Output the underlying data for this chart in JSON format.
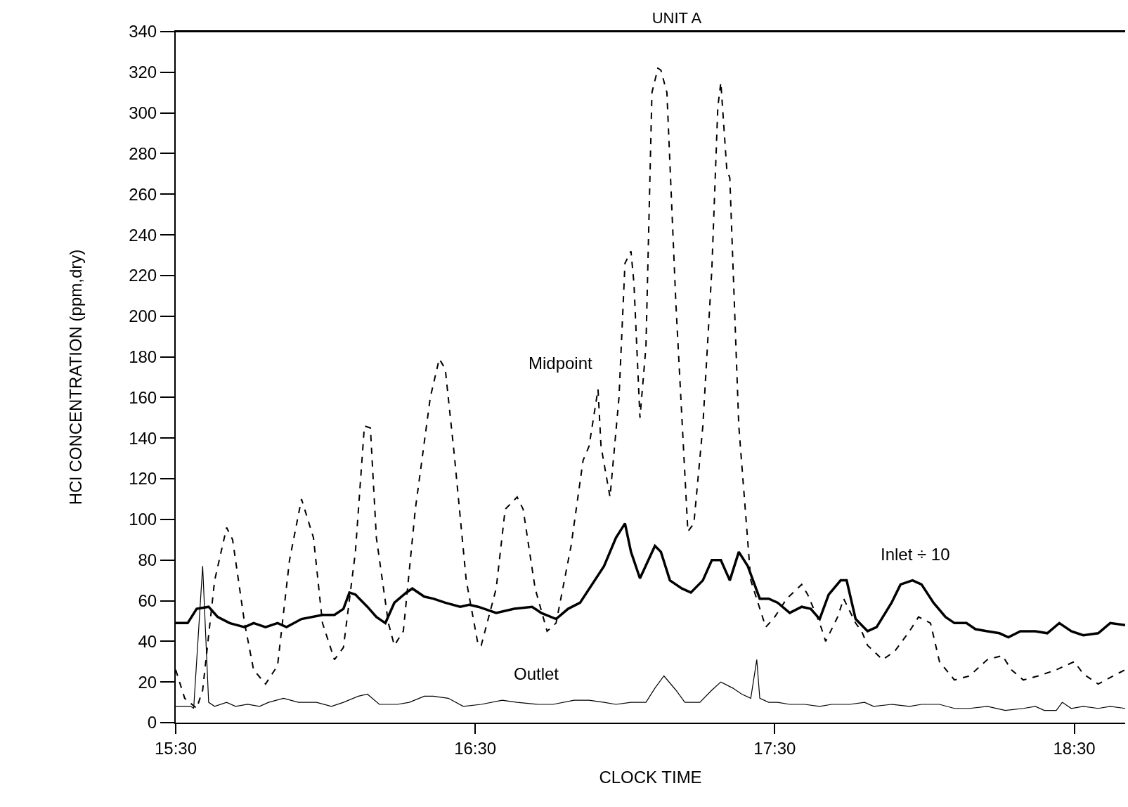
{
  "chart_data": {
    "type": "line",
    "title": "UNIT A",
    "xlabel": "CLOCK TIME",
    "ylabel": "HCl CONCENTRATION (ppm,dry)",
    "xlim": [
      15.5,
      18.67
    ],
    "xticks": [
      {
        "value": 15.5,
        "label": "15:30"
      },
      {
        "value": 16.5,
        "label": "16:30"
      },
      {
        "value": 17.5,
        "label": "17:30"
      },
      {
        "value": 18.5,
        "label": "18:30"
      }
    ],
    "ylim": [
      0,
      340
    ],
    "yticks": [
      0,
      20,
      40,
      60,
      80,
      100,
      120,
      140,
      160,
      180,
      200,
      220,
      240,
      260,
      280,
      300,
      320,
      340
    ],
    "grid": false,
    "marker": "none",
    "annotations": [
      "Midpoint",
      "Inlet ÷ 10",
      "Outlet"
    ],
    "series": [
      {
        "color": "#000000",
        "line_style": "dashed",
        "x": [
          15.5,
          15.53,
          15.57,
          15.59,
          15.63,
          15.67,
          15.69,
          15.73,
          15.76,
          15.8,
          15.84,
          15.88,
          15.92,
          15.96,
          15.99,
          16.03,
          16.06,
          16.1,
          16.13,
          16.15,
          16.17,
          16.21,
          16.23,
          16.26,
          16.3,
          16.35,
          16.38,
          16.4,
          16.43,
          16.47,
          16.51,
          16.52,
          16.57,
          16.6,
          16.64,
          16.66,
          16.7,
          16.74,
          16.77,
          16.82,
          16.86,
          16.88,
          16.91,
          16.92,
          16.95,
          16.98,
          17.0,
          17.02,
          17.03,
          17.05,
          17.07,
          17.09,
          17.11,
          17.12,
          17.14,
          17.17,
          17.21,
          17.23,
          17.26,
          17.29,
          17.31,
          17.32,
          17.34,
          17.35,
          17.38,
          17.42,
          17.47,
          17.5,
          17.54,
          17.59,
          17.61,
          17.65,
          17.67,
          17.71,
          17.73,
          17.77,
          17.79,
          17.81,
          17.86,
          17.9,
          17.95,
          17.98,
          18.02,
          18.05,
          18.1,
          18.15,
          18.21,
          18.26,
          18.29,
          18.33,
          18.38,
          18.44,
          18.5,
          18.53,
          18.58,
          18.63,
          18.67
        ],
        "values": [
          26,
          12,
          7,
          16,
          70,
          96,
          90,
          49,
          26,
          19,
          28,
          80,
          110,
          91,
          49,
          31,
          37,
          84,
          146,
          145,
          91,
          49,
          38,
          45,
          105,
          160,
          179,
          174,
          132,
          70,
          38,
          38,
          66,
          105,
          111,
          105,
          66,
          45,
          49,
          87,
          129,
          136,
          164,
          136,
          111,
          160,
          226,
          232,
          216,
          150,
          185,
          310,
          322,
          321,
          310,
          206,
          94,
          98,
          146,
          223,
          303,
          315,
          272,
          268,
          146,
          70,
          47,
          52,
          61,
          68,
          63,
          49,
          40,
          52,
          61,
          49,
          45,
          38,
          31,
          35,
          45,
          52,
          49,
          30,
          21,
          23,
          31,
          33,
          26,
          21,
          23,
          26,
          30,
          24,
          19,
          23,
          26
        ]
      },
      {
        "color": "#000000",
        "line_style": "solid",
        "x": [
          15.5,
          15.54,
          15.57,
          15.61,
          15.64,
          15.68,
          15.73,
          15.76,
          15.8,
          15.84,
          15.87,
          15.92,
          15.99,
          16.03,
          16.06,
          16.08,
          16.1,
          16.14,
          16.17,
          16.2,
          16.23,
          16.27,
          16.29,
          16.33,
          16.36,
          16.4,
          16.45,
          16.48,
          16.51,
          16.57,
          16.63,
          16.69,
          16.72,
          16.77,
          16.81,
          16.85,
          16.93,
          16.97,
          17.0,
          17.02,
          17.05,
          17.1,
          17.12,
          17.15,
          17.19,
          17.22,
          17.26,
          17.29,
          17.32,
          17.35,
          17.38,
          17.41,
          17.45,
          17.48,
          17.51,
          17.55,
          17.59,
          17.62,
          17.65,
          17.68,
          17.72,
          17.74,
          17.77,
          17.81,
          17.84,
          17.89,
          17.92,
          17.96,
          17.99,
          18.03,
          18.07,
          18.1,
          18.14,
          18.17,
          18.21,
          18.25,
          18.28,
          18.32,
          18.37,
          18.41,
          18.45,
          18.49,
          18.53,
          18.58,
          18.62,
          18.67
        ],
        "values": [
          49,
          49,
          56,
          57,
          52,
          49,
          47,
          49,
          47,
          49,
          47,
          51,
          53,
          53,
          56,
          64,
          63,
          57,
          52,
          49,
          59,
          64,
          66,
          62,
          61,
          59,
          57,
          58,
          57,
          54,
          56,
          57,
          54,
          51,
          56,
          59,
          77,
          91,
          98,
          84,
          71,
          87,
          84,
          70,
          66,
          64,
          70,
          80,
          80,
          70,
          84,
          77,
          61,
          61,
          59,
          54,
          57,
          56,
          51,
          63,
          70,
          70,
          51,
          45,
          47,
          59,
          68,
          70,
          68,
          59,
          52,
          49,
          49,
          46,
          45,
          44,
          42,
          45,
          45,
          44,
          49,
          45,
          43,
          44,
          49,
          48
        ]
      },
      {
        "color": "#000000",
        "line_style": "solid",
        "x": [
          15.5,
          15.55,
          15.56,
          15.59,
          15.61,
          15.63,
          15.67,
          15.7,
          15.74,
          15.78,
          15.81,
          15.86,
          15.91,
          15.97,
          16.02,
          16.06,
          16.11,
          16.14,
          16.18,
          16.24,
          16.28,
          16.33,
          16.36,
          16.41,
          16.46,
          16.52,
          16.59,
          16.64,
          16.71,
          16.76,
          16.83,
          16.88,
          16.93,
          16.97,
          17.02,
          17.07,
          17.1,
          17.13,
          17.17,
          17.2,
          17.25,
          17.29,
          17.32,
          17.36,
          17.39,
          17.42,
          17.44,
          17.45,
          17.48,
          17.51,
          17.55,
          17.6,
          17.65,
          17.69,
          17.75,
          17.8,
          17.83,
          17.89,
          17.95,
          17.99,
          18.05,
          18.1,
          18.15,
          18.21,
          18.27,
          18.33,
          18.37,
          18.4,
          18.44,
          18.46,
          18.49,
          18.53,
          18.58,
          18.62,
          18.67
        ],
        "values": [
          8,
          8,
          7,
          77,
          10,
          8,
          10,
          8,
          9,
          8,
          10,
          12,
          10,
          10,
          8,
          10,
          13,
          14,
          9,
          9,
          10,
          13,
          13,
          12,
          8,
          9,
          11,
          10,
          9,
          9,
          11,
          11,
          10,
          9,
          10,
          10,
          17,
          23,
          16,
          10,
          10,
          16,
          20,
          17,
          14,
          12,
          31,
          12,
          10,
          10,
          9,
          9,
          8,
          9,
          9,
          10,
          8,
          9,
          8,
          9,
          9,
          7,
          7,
          8,
          6,
          7,
          8,
          6,
          6,
          10,
          7,
          8,
          7,
          8,
          7
        ]
      }
    ]
  }
}
